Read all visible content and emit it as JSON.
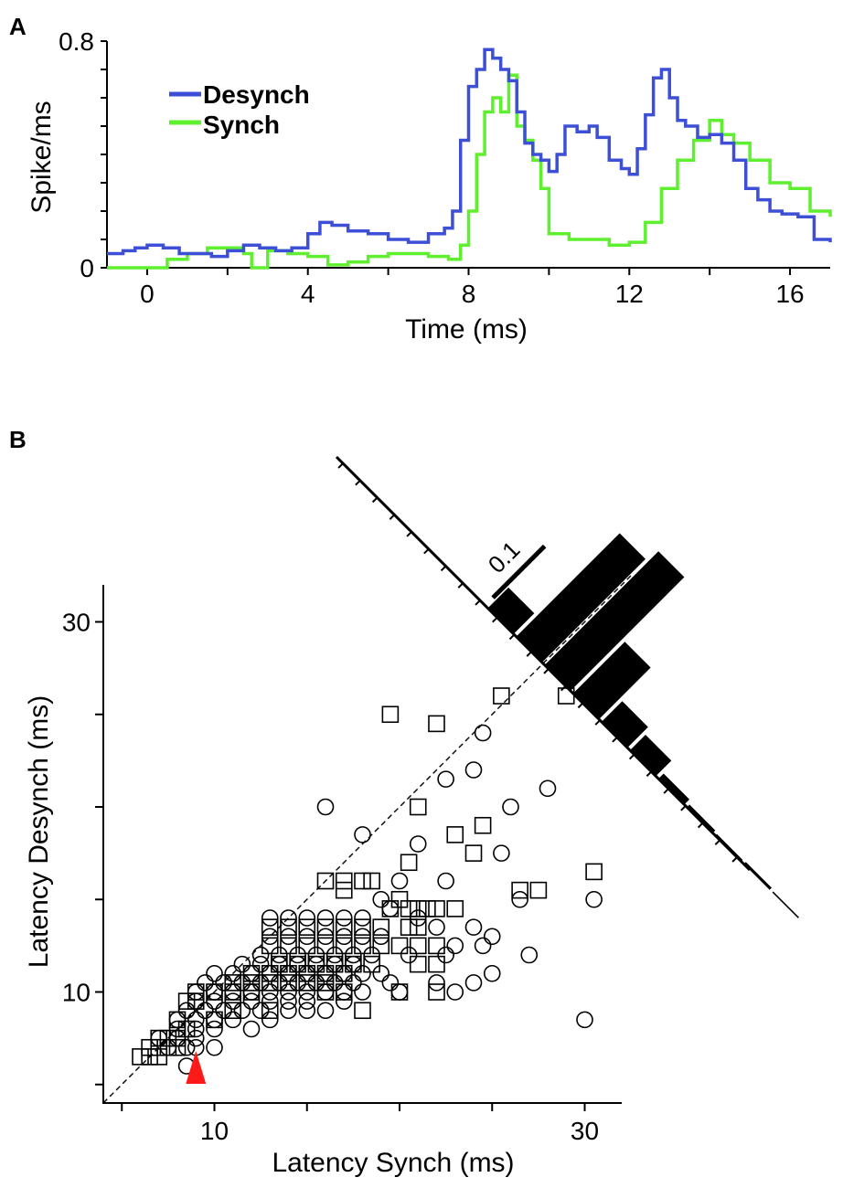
{
  "panel_labels": [
    "A",
    "B"
  ],
  "colors": {
    "desynch": "#3d4fd6",
    "synch": "#5ef02e",
    "marker": "#ff1a1a",
    "ink": "#000000"
  },
  "chart_data": [
    {
      "type": "line",
      "panel": "A",
      "title": "",
      "xlabel": "Time (ms)",
      "ylabel": "Spike/ms",
      "xlim": [
        -1,
        17
      ],
      "ylim": [
        0,
        0.8
      ],
      "xticks": [
        0,
        4,
        8,
        12,
        16
      ],
      "xtick_labels": [
        "0",
        "4",
        "8",
        "12",
        "16"
      ],
      "yticks": [
        0,
        0.8
      ],
      "ytick_labels": [
        "0",
        "0.8"
      ],
      "legend": {
        "placement": "top-left",
        "entries": [
          "Desynch",
          "Synch"
        ]
      },
      "series": [
        {
          "name": "Desynch",
          "x": [
            -1,
            -0.6,
            -0.3,
            0,
            0.4,
            0.8,
            1.2,
            1.6,
            2,
            2.4,
            2.8,
            3.2,
            3.6,
            4,
            4.3,
            4.6,
            5,
            5.5,
            6,
            6.5,
            7,
            7.4,
            7.6,
            7.8,
            8,
            8.2,
            8.4,
            8.6,
            8.8,
            9,
            9.2,
            9.4,
            9.6,
            9.8,
            10,
            10.2,
            10.4,
            10.7,
            11,
            11.2,
            11.5,
            11.8,
            12,
            12.2,
            12.4,
            12.6,
            12.8,
            13,
            13.2,
            13.4,
            13.7,
            14,
            14.3,
            14.6,
            14.9,
            15.2,
            15.5,
            15.8,
            16.2,
            16.6,
            17
          ],
          "y": [
            0.05,
            0.06,
            0.07,
            0.08,
            0.07,
            0.05,
            0.05,
            0.04,
            0.06,
            0.08,
            0.07,
            0.06,
            0.07,
            0.12,
            0.16,
            0.15,
            0.13,
            0.12,
            0.1,
            0.09,
            0.12,
            0.14,
            0.2,
            0.45,
            0.64,
            0.7,
            0.77,
            0.74,
            0.7,
            0.66,
            0.55,
            0.44,
            0.4,
            0.38,
            0.34,
            0.4,
            0.5,
            0.48,
            0.5,
            0.46,
            0.38,
            0.35,
            0.33,
            0.42,
            0.54,
            0.67,
            0.7,
            0.6,
            0.52,
            0.5,
            0.46,
            0.47,
            0.44,
            0.38,
            0.28,
            0.24,
            0.2,
            0.19,
            0.18,
            0.1,
            0.09
          ]
        },
        {
          "name": "Synch",
          "x": [
            -1,
            -0.5,
            0,
            0.5,
            1,
            1.5,
            2,
            2.4,
            2.6,
            3,
            3.5,
            4,
            4.5,
            5,
            5.5,
            6,
            6.5,
            7,
            7.5,
            7.8,
            8,
            8.2,
            8.4,
            8.6,
            8.8,
            9,
            9.2,
            9.4,
            9.6,
            9.8,
            10,
            10.5,
            11,
            11.5,
            12,
            12.4,
            12.8,
            13.2,
            13.6,
            14,
            14.3,
            14.6,
            15,
            15.5,
            16,
            16.5,
            17
          ],
          "y": [
            0,
            0,
            0,
            0.03,
            0.05,
            0.07,
            0.07,
            0.05,
            0,
            0.06,
            0.05,
            0.04,
            0.01,
            0.02,
            0.04,
            0.05,
            0.05,
            0.04,
            0.03,
            0.08,
            0.2,
            0.4,
            0.55,
            0.6,
            0.55,
            0.68,
            0.5,
            0.45,
            0.38,
            0.28,
            0.12,
            0.1,
            0.1,
            0.08,
            0.09,
            0.16,
            0.28,
            0.38,
            0.45,
            0.52,
            0.47,
            0.44,
            0.38,
            0.3,
            0.28,
            0.2,
            0.18
          ]
        }
      ]
    },
    {
      "type": "scatter",
      "panel": "B",
      "title": "",
      "xlabel": "Latency Synch (ms)",
      "ylabel": "Latency Desynch (ms)",
      "xlim": [
        4,
        32
      ],
      "ylim": [
        4,
        32
      ],
      "xticks": [
        5,
        10,
        15,
        20,
        25,
        30
      ],
      "xtick_labels": [
        "",
        "10",
        "",
        "",
        "",
        "30"
      ],
      "yticks": [
        5,
        10,
        15,
        20,
        25,
        30
      ],
      "ytick_labels": [
        "",
        "10",
        "",
        "",
        "",
        "30"
      ],
      "identity_line": true,
      "median_marker_x": 9,
      "marker_types": [
        "square",
        "circle"
      ],
      "squares": [
        [
          27.5,
          29
        ],
        [
          25.5,
          26
        ],
        [
          29,
          26
        ],
        [
          19.5,
          25
        ],
        [
          22,
          24.5
        ],
        [
          21,
          20
        ],
        [
          24.5,
          19
        ],
        [
          23,
          18.5
        ],
        [
          16,
          16
        ],
        [
          17,
          16
        ],
        [
          18,
          16
        ],
        [
          18.5,
          16
        ],
        [
          20.5,
          17
        ],
        [
          20,
          15
        ],
        [
          24,
          17.5
        ],
        [
          17,
          15.5
        ],
        [
          19.5,
          14.5
        ],
        [
          20.5,
          14.5
        ],
        [
          21,
          14.5
        ],
        [
          21.5,
          14.5
        ],
        [
          22,
          14.5
        ],
        [
          23,
          14.5
        ],
        [
          20.5,
          13.5
        ],
        [
          21,
          13.5
        ],
        [
          13,
          13.5
        ],
        [
          14,
          13.5
        ],
        [
          15,
          13.5
        ],
        [
          16,
          13.5
        ],
        [
          17,
          13.5
        ],
        [
          18,
          13.5
        ],
        [
          19,
          13.5
        ],
        [
          13,
          12.5
        ],
        [
          14,
          12.5
        ],
        [
          15,
          12.5
        ],
        [
          16,
          12.5
        ],
        [
          17,
          12.5
        ],
        [
          18,
          12.5
        ],
        [
          19,
          12.5
        ],
        [
          20,
          12.5
        ],
        [
          21,
          12.5
        ],
        [
          22,
          12.5
        ],
        [
          13.5,
          11.5
        ],
        [
          14.5,
          11.5
        ],
        [
          15.5,
          11.5
        ],
        [
          16.5,
          11.5
        ],
        [
          17.5,
          11.5
        ],
        [
          18.5,
          11.5
        ],
        [
          21,
          11.5
        ],
        [
          22,
          11.5
        ],
        [
          12,
          11
        ],
        [
          13,
          11
        ],
        [
          14,
          11
        ],
        [
          15,
          11
        ],
        [
          16,
          11
        ],
        [
          17,
          11
        ],
        [
          11,
          10.5
        ],
        [
          12,
          10.5
        ],
        [
          13,
          10.5
        ],
        [
          14,
          10.5
        ],
        [
          15,
          10.5
        ],
        [
          16,
          10.5
        ],
        [
          16,
          10
        ],
        [
          17,
          10
        ],
        [
          20,
          10
        ],
        [
          22,
          10
        ],
        [
          18,
          9
        ],
        [
          12,
          10
        ],
        [
          11,
          10
        ],
        [
          10,
          10
        ],
        [
          9,
          10
        ],
        [
          9,
          9.5
        ],
        [
          8.5,
          9.5
        ],
        [
          13,
          9
        ],
        [
          11,
          9
        ],
        [
          10,
          8.5
        ],
        [
          8,
          8.5
        ],
        [
          8.5,
          8
        ],
        [
          7,
          7.5
        ],
        [
          7.5,
          7.5
        ],
        [
          8,
          7.5
        ],
        [
          6.5,
          7
        ],
        [
          7,
          7
        ],
        [
          7.5,
          7
        ],
        [
          8,
          7
        ],
        [
          6,
          6.5
        ],
        [
          6.5,
          6.5
        ],
        [
          7,
          6.5
        ],
        [
          30.5,
          16.5
        ],
        [
          27.5,
          15.5
        ],
        [
          26.5,
          15.5
        ]
      ],
      "circles": [
        [
          24.5,
          24
        ],
        [
          24,
          22
        ],
        [
          22.5,
          21.5
        ],
        [
          28,
          21
        ],
        [
          26,
          20
        ],
        [
          16,
          20
        ],
        [
          18,
          18.5
        ],
        [
          21,
          18
        ],
        [
          25.5,
          17.5
        ],
        [
          20,
          16
        ],
        [
          22.5,
          16
        ],
        [
          26.5,
          15
        ],
        [
          30.5,
          15
        ],
        [
          19,
          15
        ],
        [
          19.5,
          14.5
        ],
        [
          21,
          14
        ],
        [
          13,
          14
        ],
        [
          14,
          14
        ],
        [
          15,
          14
        ],
        [
          16,
          14
        ],
        [
          17,
          14
        ],
        [
          18,
          14
        ],
        [
          22,
          13.5
        ],
        [
          24,
          13.5
        ],
        [
          25,
          13
        ],
        [
          27,
          12
        ],
        [
          13,
          13
        ],
        [
          14,
          13
        ],
        [
          15,
          13
        ],
        [
          16,
          13
        ],
        [
          17,
          13
        ],
        [
          18,
          13
        ],
        [
          19,
          13
        ],
        [
          23,
          12.5
        ],
        [
          24.5,
          12.5
        ],
        [
          12.5,
          12
        ],
        [
          13.5,
          12
        ],
        [
          14.5,
          12
        ],
        [
          15.5,
          12
        ],
        [
          16.5,
          12
        ],
        [
          17.5,
          12
        ],
        [
          18.5,
          12
        ],
        [
          20.5,
          12
        ],
        [
          22.5,
          12
        ],
        [
          11.5,
          11.5
        ],
        [
          12.5,
          11.5
        ],
        [
          13.5,
          11.5
        ],
        [
          14.5,
          11.5
        ],
        [
          15.5,
          11.5
        ],
        [
          16.5,
          11.5
        ],
        [
          17.5,
          11.5
        ],
        [
          25,
          11
        ],
        [
          10,
          11
        ],
        [
          11,
          11
        ],
        [
          12,
          11
        ],
        [
          13,
          11
        ],
        [
          14,
          11
        ],
        [
          15,
          11
        ],
        [
          16,
          11
        ],
        [
          17,
          11
        ],
        [
          18,
          11
        ],
        [
          19,
          11
        ],
        [
          24,
          10.5
        ],
        [
          22,
          10.5
        ],
        [
          9.5,
          10.5
        ],
        [
          10.5,
          10.5
        ],
        [
          11.5,
          10.5
        ],
        [
          12.5,
          10.5
        ],
        [
          13.5,
          10.5
        ],
        [
          14.5,
          10.5
        ],
        [
          15.5,
          10.5
        ],
        [
          16.5,
          10.5
        ],
        [
          17.5,
          10.5
        ],
        [
          19.5,
          10.5
        ],
        [
          23,
          10
        ],
        [
          9,
          10
        ],
        [
          10,
          10
        ],
        [
          11,
          10
        ],
        [
          12,
          10
        ],
        [
          13,
          10
        ],
        [
          14,
          10
        ],
        [
          15,
          10
        ],
        [
          16,
          10
        ],
        [
          17,
          10
        ],
        [
          18,
          10
        ],
        [
          20,
          10
        ],
        [
          9,
          9.5
        ],
        [
          10,
          9.5
        ],
        [
          11,
          9.5
        ],
        [
          12,
          9.5
        ],
        [
          13,
          9.5
        ],
        [
          14,
          9.5
        ],
        [
          15,
          9.5
        ],
        [
          17,
          9.5
        ],
        [
          8.5,
          9
        ],
        [
          9.5,
          9
        ],
        [
          10.5,
          9
        ],
        [
          11.5,
          9
        ],
        [
          12.5,
          9
        ],
        [
          14,
          9
        ],
        [
          15,
          9
        ],
        [
          16,
          9
        ],
        [
          8,
          8.5
        ],
        [
          9,
          8.5
        ],
        [
          10,
          8.5
        ],
        [
          11,
          8.5
        ],
        [
          13,
          8.5
        ],
        [
          8,
          8
        ],
        [
          9,
          8
        ],
        [
          10,
          8
        ],
        [
          12,
          8
        ],
        [
          30,
          8.5
        ],
        [
          7,
          7.5
        ],
        [
          8,
          7.5
        ],
        [
          9,
          7.5
        ],
        [
          7.5,
          7
        ],
        [
          8.5,
          7
        ],
        [
          9,
          7
        ],
        [
          10,
          7
        ],
        [
          8.5,
          6
        ]
      ],
      "histogram": {
        "orientation": "anti-diagonal",
        "scale_bar_label": "0.1",
        "bin_centers": [
          -3,
          -1,
          1,
          3,
          5,
          7,
          9,
          11,
          13,
          15,
          17
        ],
        "values": [
          0.04,
          0.2,
          0.22,
          0.1,
          0.04,
          0.03,
          0.01,
          0.005,
          0.003,
          0.004,
          0.002
        ]
      }
    }
  ]
}
